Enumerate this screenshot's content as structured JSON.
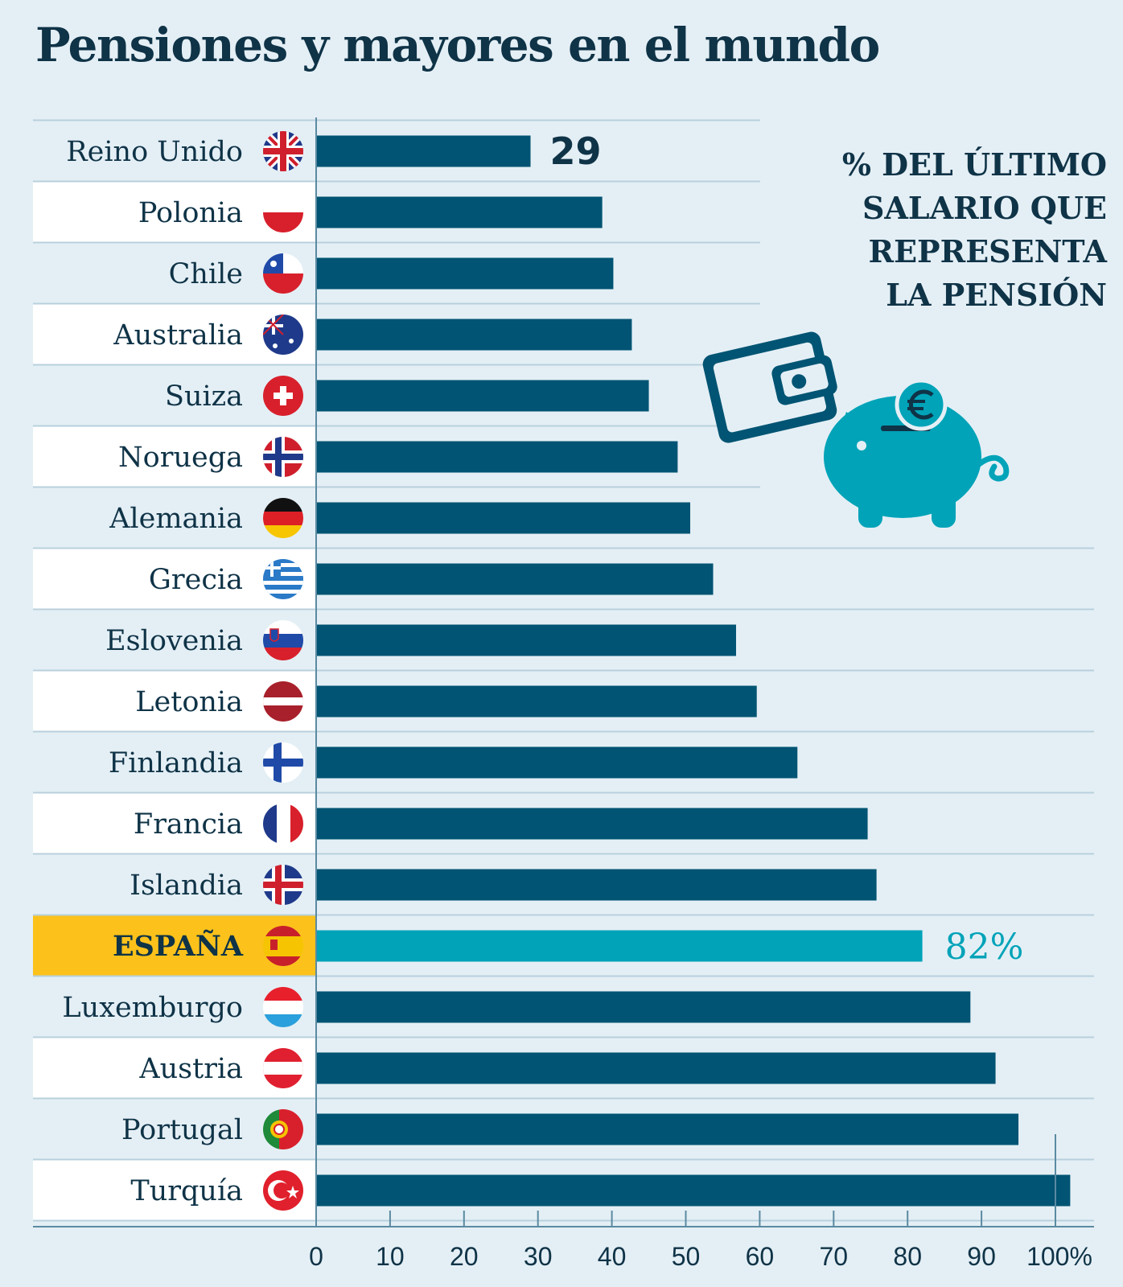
{
  "title": "Pensiones y mayores en el mundo",
  "subtitle": "% DEL ÚLTIMO\nSALARIO QUE\nREPRESENTA\nLA PENSIÓN",
  "colors": {
    "bar": "#015473",
    "highlight_bar": "#00a3b8",
    "highlight_row": "#fcc21b",
    "text": "#0f3347",
    "background": "#e4eff5",
    "grid": "#b8d0dd",
    "icon": "#00a3b8"
  },
  "icons": {
    "illustration": "wallet-and-piggy-bank-icon",
    "currency": "euro-icon"
  },
  "chart_data": {
    "type": "bar",
    "orientation": "horizontal",
    "title": "Pensiones y mayores en el mundo",
    "subtitle": "% DEL ÚLTIMO SALARIO QUE REPRESENTA LA PENSIÓN",
    "categories": [
      "Reino Unido",
      "Polonia",
      "Chile",
      "Australia",
      "Suiza",
      "Noruega",
      "Alemania",
      "Grecia",
      "Eslovenia",
      "Letonia",
      "Finlandia",
      "Francia",
      "Islandia",
      "ESPAÑA",
      "Luxemburgo",
      "Austria",
      "Portugal",
      "Turquía"
    ],
    "values": [
      29,
      38.7,
      40.2,
      42.7,
      45,
      48.9,
      50.6,
      53.7,
      56.8,
      59.6,
      65.1,
      74.6,
      75.8,
      82,
      88.5,
      91.9,
      95,
      102
    ],
    "flags": [
      "uk-flag-icon",
      "poland-flag-icon",
      "chile-flag-icon",
      "australia-flag-icon",
      "switzerland-flag-icon",
      "norway-flag-icon",
      "germany-flag-icon",
      "greece-flag-icon",
      "slovenia-flag-icon",
      "latvia-flag-icon",
      "finland-flag-icon",
      "france-flag-icon",
      "iceland-flag-icon",
      "spain-flag-icon",
      "luxembourg-flag-icon",
      "austria-flag-icon",
      "portugal-flag-icon",
      "turkey-flag-icon"
    ],
    "highlight": "ESPAÑA",
    "data_labels": [
      {
        "category": "Reino Unido",
        "text": "29"
      },
      {
        "category": "ESPAÑA",
        "text": "82%"
      }
    ],
    "xticks": [
      0,
      10,
      20,
      30,
      40,
      50,
      60,
      70,
      80,
      90,
      100
    ],
    "xtick_labels": [
      "0",
      "10",
      "20",
      "30",
      "40",
      "50",
      "60",
      "70",
      "80",
      "90",
      "100%"
    ],
    "xlim": [
      0,
      100
    ],
    "reference_line": 100,
    "xlabel": "",
    "ylabel": "",
    "grid": false,
    "legend": "none"
  }
}
